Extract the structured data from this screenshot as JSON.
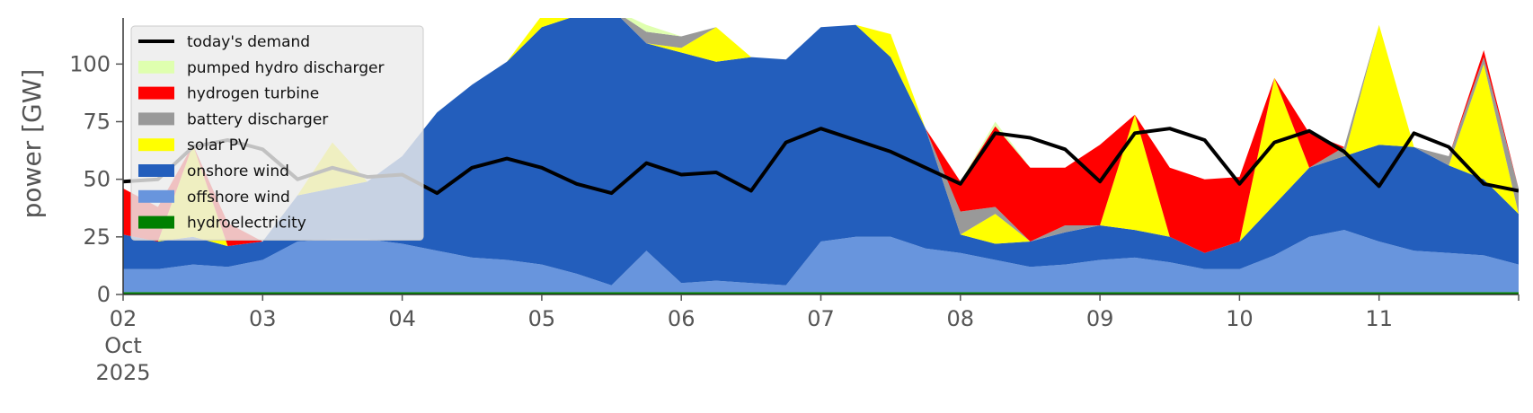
{
  "chart_data": {
    "type": "area",
    "title": "",
    "xlabel": "",
    "ylabel": "power [GW]",
    "ylim": [
      0,
      120
    ],
    "yticks": [
      0,
      25,
      50,
      75,
      100
    ],
    "xlim": [
      "2025-10-02T00:00",
      "2025-10-12T00:00"
    ],
    "xtick_labels": [
      "02",
      "03",
      "04",
      "05",
      "06",
      "07",
      "08",
      "09",
      "10",
      "11"
    ],
    "xtick_sublabels": [
      "Oct",
      "2025"
    ],
    "grid": false,
    "legend_position": "top-left",
    "time_step_hours": 6,
    "x_start": "2025-10-02T00:00",
    "colors": {
      "hydroelectricity": "#008000",
      "offshore wind": "#6895dd",
      "onshore wind": "#235ebc",
      "solar PV": "#ffff00",
      "battery discharger": "#999999",
      "hydrogen turbine": "#ff0000",
      "pumped hydro discharger": "#dfffaf",
      "today's demand": "#000000"
    },
    "series": [
      {
        "name": "hydroelectricity",
        "values": [
          1,
          1,
          1,
          1,
          1,
          1,
          1,
          1,
          1,
          1,
          1,
          1,
          1,
          1,
          1,
          1,
          1,
          1,
          1,
          1,
          1,
          1,
          1,
          1,
          1,
          1,
          1,
          1,
          1,
          1,
          1,
          1,
          1,
          1,
          1,
          1,
          1,
          1,
          1,
          1,
          1
        ]
      },
      {
        "name": "offshore wind",
        "values": [
          10,
          10,
          12,
          11,
          14,
          22,
          23,
          23,
          21,
          18,
          15,
          14,
          12,
          8,
          3,
          18,
          4,
          5,
          4,
          3,
          22,
          24,
          24,
          19,
          17,
          14,
          11,
          12,
          14,
          15,
          13,
          10,
          10,
          16,
          24,
          27,
          22,
          18,
          17,
          16,
          12
        ]
      },
      {
        "name": "onshore wind",
        "values": [
          15,
          12,
          12,
          9,
          8,
          20,
          22,
          25,
          38,
          60,
          75,
          86,
          103,
          112,
          120,
          90,
          100,
          95,
          98,
          98,
          93,
          92,
          78,
          52,
          8,
          7,
          11,
          14,
          15,
          12,
          11,
          7,
          12,
          22,
          30,
          32,
          42,
          45,
          38,
          33,
          22
        ]
      },
      {
        "name": "solar PV",
        "values": [
          0,
          0,
          40,
          0,
          0,
          0,
          20,
          0,
          0,
          0,
          0,
          0,
          5,
          0,
          0,
          0,
          2,
          15,
          0,
          0,
          0,
          0,
          10,
          0,
          0,
          13,
          0,
          0,
          0,
          50,
          0,
          0,
          0,
          55,
          0,
          0,
          52,
          0,
          0,
          50,
          0
        ]
      },
      {
        "name": "battery discharger",
        "values": [
          0,
          0,
          0,
          0,
          0,
          0,
          0,
          0,
          0,
          0,
          0,
          0,
          0,
          0,
          0,
          5,
          5,
          0,
          0,
          0,
          0,
          0,
          0,
          0,
          10,
          3,
          0,
          3,
          0,
          0,
          0,
          0,
          0,
          0,
          0,
          4,
          0,
          0,
          4,
          3,
          11
        ]
      },
      {
        "name": "hydrogen turbine",
        "values": [
          20,
          15,
          0,
          10,
          0,
          0,
          0,
          0,
          0,
          0,
          0,
          0,
          0,
          0,
          0,
          0,
          0,
          0,
          0,
          0,
          0,
          0,
          0,
          0,
          13,
          35,
          32,
          25,
          35,
          0,
          30,
          32,
          28,
          0,
          15,
          0,
          0,
          0,
          0,
          3,
          0
        ]
      },
      {
        "name": "pumped hydro discharger",
        "values": [
          0,
          0,
          0,
          0,
          0,
          0,
          0,
          0,
          0,
          0,
          0,
          0,
          0,
          0,
          0,
          3,
          0,
          0,
          0,
          0,
          0,
          0,
          0,
          0,
          0,
          2,
          0,
          0,
          0,
          0,
          0,
          0,
          0,
          0,
          0,
          0,
          0,
          0,
          0,
          0,
          0
        ]
      },
      {
        "name": "today's demand",
        "type": "line",
        "values": [
          49,
          50,
          64,
          67,
          63,
          50,
          55,
          51,
          52,
          44,
          55,
          59,
          55,
          48,
          44,
          57,
          52,
          53,
          45,
          66,
          72,
          67,
          62,
          55,
          48,
          70,
          68,
          63,
          49,
          70,
          72,
          67,
          48,
          66,
          71,
          62,
          47,
          70,
          64,
          48,
          45
        ]
      }
    ]
  }
}
